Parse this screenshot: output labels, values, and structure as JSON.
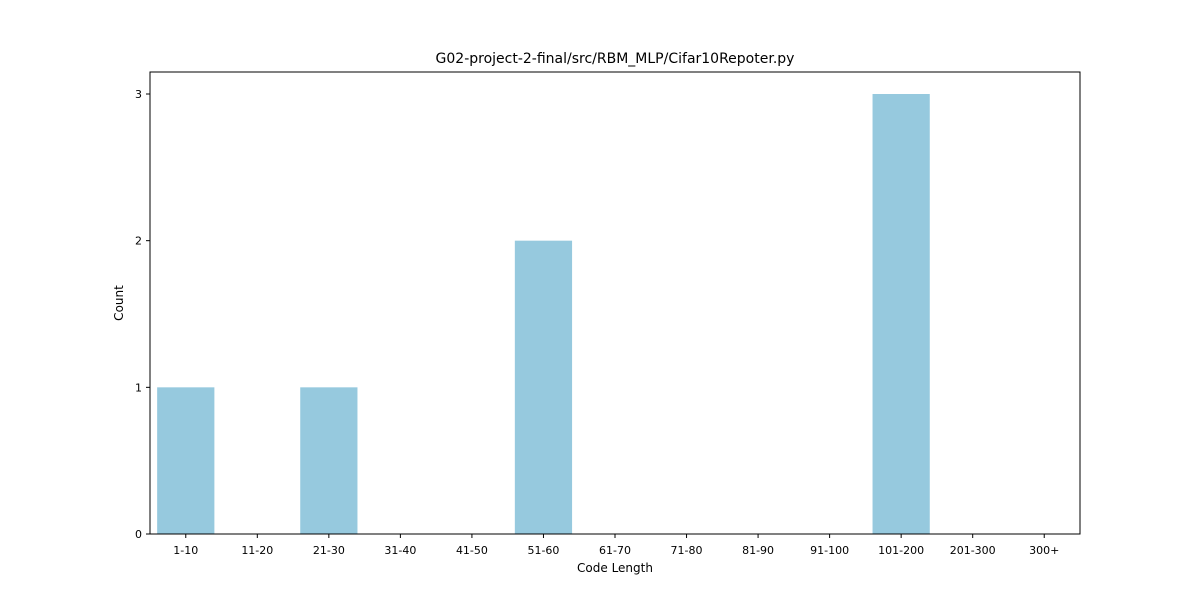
{
  "chart_data": {
    "type": "bar",
    "title": "G02-project-2-final/src/RBM_MLP/Cifar10Repoter.py",
    "xlabel": "Code Length",
    "ylabel": "Count",
    "categories": [
      "1-10",
      "11-20",
      "21-30",
      "31-40",
      "41-50",
      "51-60",
      "61-70",
      "71-80",
      "81-90",
      "91-100",
      "101-200",
      "201-300",
      "300+"
    ],
    "values": [
      1,
      0,
      1,
      0,
      0,
      2,
      0,
      0,
      0,
      0,
      3,
      0,
      0
    ],
    "ylim": [
      0,
      3.15
    ],
    "yticks": [
      0,
      1,
      2,
      3
    ],
    "bar_color": "#96c9de",
    "grid": false
  }
}
